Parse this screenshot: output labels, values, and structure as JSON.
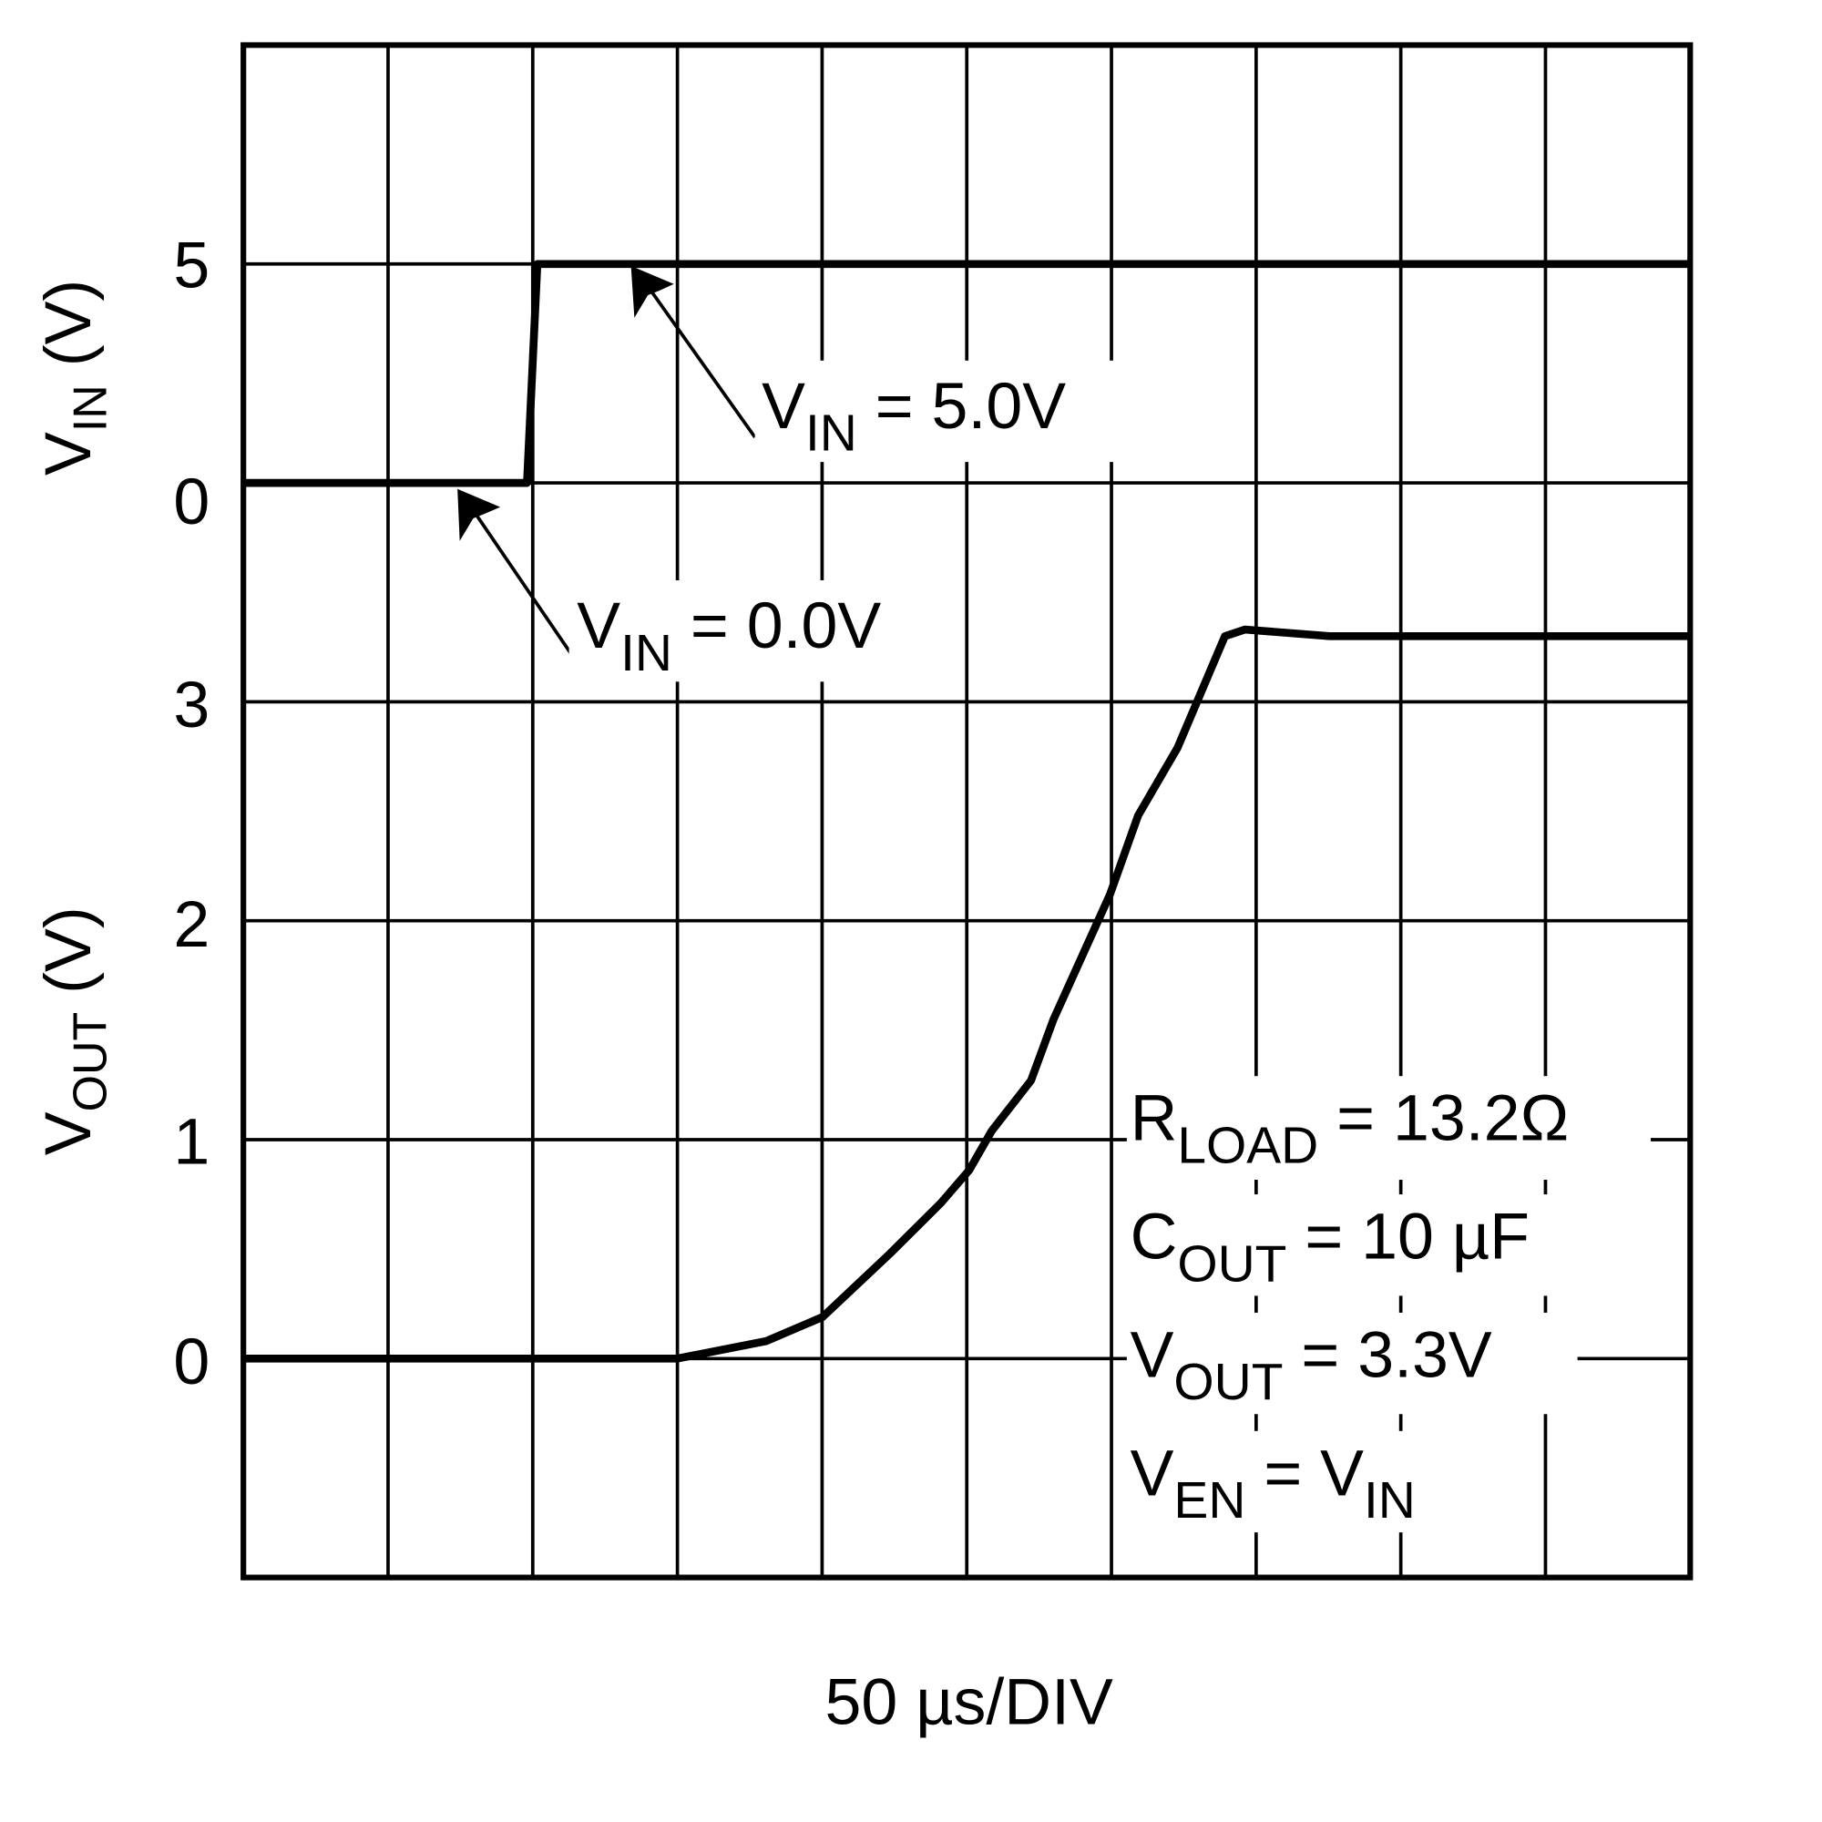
{
  "chart_data": {
    "type": "line",
    "title": "",
    "xlabel": "50 µs/DIV",
    "x_unit": "µs",
    "xlim": [
      0,
      500
    ],
    "x_divisions": 10,
    "grid": true,
    "axes": [
      {
        "label_main": "V",
        "label_sub": "IN",
        "label_tail": " (V)",
        "ticks": [
          "5",
          "0"
        ],
        "range": [
          0,
          5
        ]
      },
      {
        "label_main": "V",
        "label_sub": "OUT",
        "label_tail": " (V)",
        "ticks": [
          "3",
          "2",
          "1",
          "0"
        ],
        "range": [
          0,
          3
        ]
      }
    ],
    "series": [
      {
        "axis": "VIN",
        "x": [
          0,
          98,
          101.6,
          500
        ],
        "y": [
          0,
          0,
          5,
          5
        ]
      },
      {
        "axis": "VOUT",
        "x": [
          0,
          150,
          180.7,
          200.2,
          223.5,
          241,
          250.8,
          258.6,
          272.2,
          280,
          299.5,
          309.2,
          322.8,
          339.2,
          346.2,
          375.4,
          500
        ],
        "y": [
          0,
          0,
          0.08,
          0.19,
          0.48,
          0.71,
          0.86,
          1.04,
          1.27,
          1.55,
          2.12,
          2.48,
          2.79,
          3.3,
          3.33,
          3.3,
          3.3
        ]
      }
    ],
    "annotations": {
      "vin_high": {
        "main": "V",
        "sub": "IN",
        "tail": " = 5.0V"
      },
      "vin_low": {
        "main": "V",
        "sub": "IN",
        "tail": " = 0.0V"
      },
      "conditions": [
        {
          "main": "R",
          "sub": "LOAD",
          "tail": " = 13.2Ω"
        },
        {
          "main": "C",
          "sub": "OUT",
          "tail": " = 10 µF"
        },
        {
          "main": "V",
          "sub": "OUT",
          "tail": " = 3.3V"
        },
        {
          "main": "V",
          "sub": "EN",
          "tail": " = V",
          "sub2": "IN"
        }
      ]
    }
  }
}
